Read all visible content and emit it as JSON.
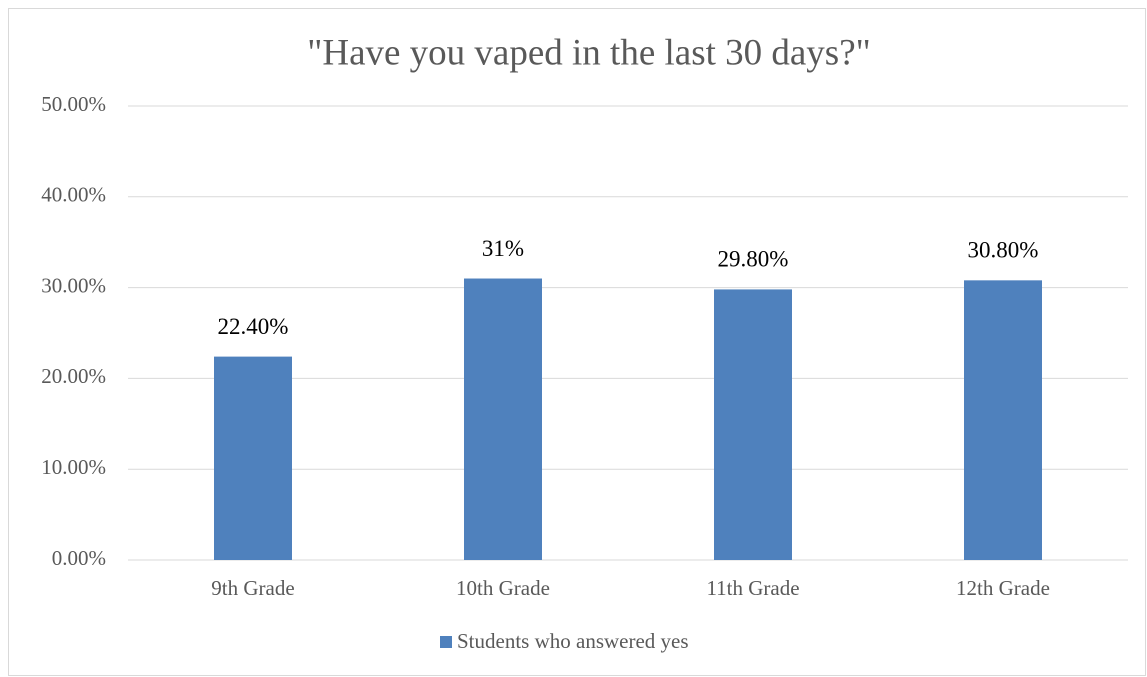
{
  "chart_data": {
    "type": "bar",
    "title": "\"Have you vaped in the last 30 days?\"",
    "categories": [
      "9th Grade",
      "10th Grade",
      "11th Grade",
      "12th Grade"
    ],
    "series": [
      {
        "name": "Students who answered yes",
        "color": "#4f81bd",
        "values": [
          22.4,
          31,
          29.8,
          30.8
        ],
        "value_labels": [
          "22.40%",
          "31%",
          "29.80%",
          "30.80%"
        ]
      }
    ],
    "ylim": [
      0,
      50
    ],
    "yticks": [
      {
        "value": 0,
        "label": "0.00%"
      },
      {
        "value": 10,
        "label": "10.00%"
      },
      {
        "value": 20,
        "label": "20.00%"
      },
      {
        "value": 30,
        "label": "30.00%"
      },
      {
        "value": 40,
        "label": "40.00%"
      },
      {
        "value": 50,
        "label": "50.00%"
      }
    ],
    "grid": true,
    "legend": "bottom"
  }
}
